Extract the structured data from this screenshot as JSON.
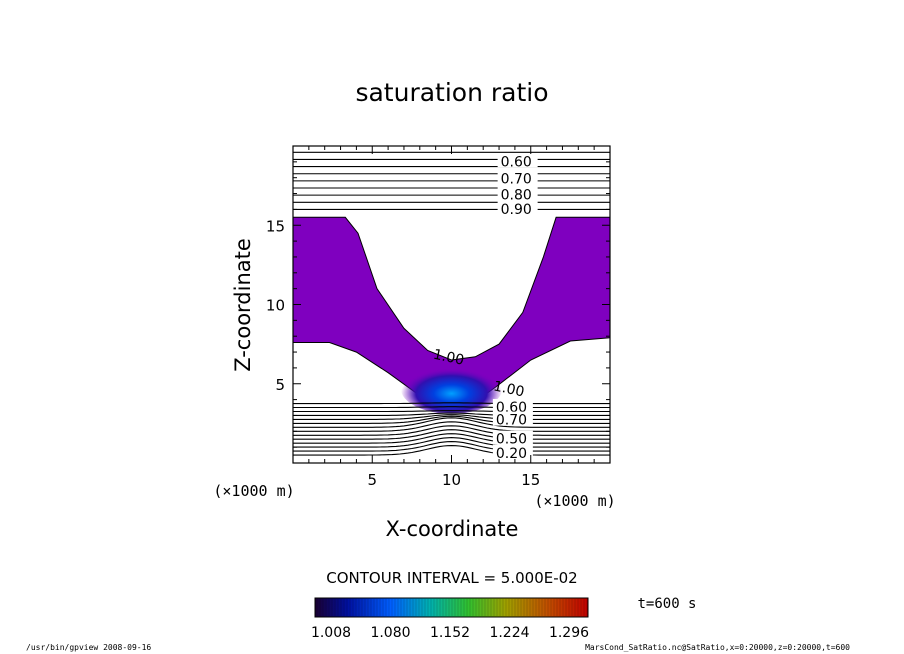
{
  "chart_data": {
    "type": "contour",
    "title": "saturation ratio",
    "xlabel": "X-coordinate",
    "ylabel": "Z-coordinate",
    "x_unit": "(×1000 m)",
    "z_unit": "(×1000 m)",
    "xlim": [
      0,
      20
    ],
    "ylim": [
      0,
      20
    ],
    "xticks": [
      5,
      10,
      15
    ],
    "yticks": [
      5,
      10,
      15
    ],
    "contour_interval_text": "CONTOUR INTERVAL = 5.000E-02",
    "time_text": "t=600 s",
    "colorbar_labels": [
      "1.008",
      "1.080",
      "1.152",
      "1.224",
      "1.296"
    ],
    "colorbar_range": [
      1.008,
      1.296
    ],
    "upper_labels": [
      {
        "text": "0.60",
        "z": 19.1
      },
      {
        "text": "0.70",
        "z": 18.0
      },
      {
        "text": "0.80",
        "z": 17.0
      },
      {
        "text": "0.90",
        "z": 16.1
      }
    ],
    "lower_labels": [
      {
        "text": "0.60",
        "z": 3.6
      },
      {
        "text": "0.70",
        "z": 2.8
      },
      {
        "text": "0.50",
        "z": 1.6
      },
      {
        "text": "0.20",
        "z": 0.7
      }
    ],
    "unity_labels": [
      {
        "text": "1.00",
        "x": 8.8,
        "z": 6.6
      },
      {
        "text": "1.00",
        "x": 12.6,
        "z": 4.6
      }
    ],
    "supersat_region_top": [
      [
        0,
        15.5
      ],
      [
        3.3,
        15.5
      ],
      [
        4.1,
        14.5
      ],
      [
        5.3,
        11.0
      ],
      [
        7.0,
        8.5
      ],
      [
        8.5,
        7.1
      ],
      [
        10.0,
        6.5
      ],
      [
        11.5,
        6.7
      ],
      [
        13.0,
        7.5
      ],
      [
        14.5,
        9.5
      ],
      [
        15.8,
        13.0
      ],
      [
        16.6,
        15.5
      ],
      [
        20,
        15.5
      ]
    ],
    "supersat_region_bottom": [
      [
        0,
        7.6
      ],
      [
        2.3,
        7.6
      ],
      [
        4.0,
        7.0
      ],
      [
        6.0,
        5.7
      ],
      [
        7.8,
        4.4
      ],
      [
        8.6,
        3.8
      ],
      [
        11.4,
        3.8
      ],
      [
        12.8,
        4.8
      ],
      [
        15.0,
        6.5
      ],
      [
        17.5,
        7.7
      ],
      [
        20,
        7.9
      ]
    ],
    "max_value_location": {
      "x": 10.0,
      "z": 4.2
    }
  },
  "footer": {
    "left": "/usr/bin/gpview   2008-09-16",
    "right": "MarsCond_SatRatio.nc@SatRatio,x=0:20000,z=0:20000,t=600"
  },
  "colors": {
    "supersat_fill": "#7f00bf",
    "colormap": [
      "#1a0033",
      "#0010a0",
      "#0060ff",
      "#00b0b0",
      "#30c030",
      "#a0a000",
      "#c05000",
      "#c00000"
    ]
  }
}
